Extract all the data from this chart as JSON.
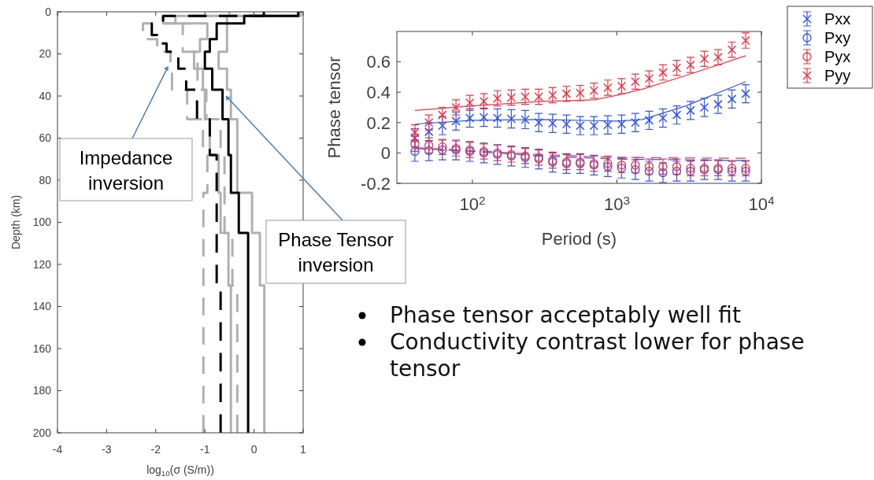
{
  "chart_data": [
    {
      "type": "line",
      "xlabel": "log$_{10}$(σ (S/m))",
      "ylabel": "Depth (km)",
      "xlim": [
        -4,
        1
      ],
      "ylim": [
        200,
        0
      ],
      "xticks": [
        -4,
        -3,
        -2,
        -1,
        0,
        1
      ],
      "yticks": [
        0,
        20,
        40,
        60,
        80,
        100,
        120,
        140,
        160,
        180,
        200
      ],
      "grid": false,
      "legend": false,
      "series": [
        {
          "color": "#b0b0b0",
          "line_style": "solid",
          "x": [
            0.95,
            0.95,
            -0.55,
            -0.55,
            -0.72,
            -0.72,
            -0.55,
            -0.55,
            -0.47,
            -0.47,
            -0.34,
            -0.34,
            -0.04,
            -0.04,
            0.12,
            0.12,
            0.21,
            0.21
          ],
          "values": [
            0,
            2,
            2,
            19,
            19,
            27,
            27,
            37,
            37,
            51,
            51,
            86,
            86,
            105,
            105,
            130,
            130,
            200
          ]
        },
        {
          "color": "#b0b0b0",
          "line_style": "solid",
          "x": [
            0.9,
            0.9,
            -1.85,
            -1.85,
            -0.95,
            -0.95,
            -1.1,
            -1.1,
            -1.22,
            -1.22,
            -1.04,
            -1.04,
            -1.0,
            -1.0,
            -0.9,
            -0.9,
            -0.72,
            -0.72,
            -0.68,
            -0.68,
            -0.52,
            -0.52,
            -0.47,
            -0.47
          ],
          "values": [
            0,
            2,
            2,
            5.5,
            5.5,
            13,
            13,
            19,
            19,
            27,
            27,
            37,
            37,
            51,
            51,
            68,
            68,
            86,
            86,
            105,
            105,
            130,
            130,
            200
          ]
        },
        {
          "color": "#b0b0b0",
          "line_style": "dashed",
          "x": [
            0.9,
            0.9,
            -1.3,
            -1.3,
            -1.45,
            -1.45,
            -1.15,
            -1.15,
            -0.97,
            -0.97,
            -0.68,
            -0.68,
            -0.6,
            -0.6,
            -0.44,
            -0.44,
            -0.34,
            -0.34
          ],
          "values": [
            0,
            2,
            2,
            5.5,
            5.5,
            19,
            19,
            37,
            37,
            51,
            51,
            68,
            68,
            105,
            105,
            130,
            130,
            200
          ]
        },
        {
          "color": "#b0b0b0",
          "line_style": "dashed",
          "x": [
            -0.5,
            -0.5,
            -1.6,
            -1.6,
            -2.26,
            -2.26,
            -1.97,
            -1.97,
            -1.7,
            -1.7,
            -1.67,
            -1.67,
            -1.36,
            -1.36,
            -1.04,
            -1.04,
            -0.95,
            -0.95,
            -1.03,
            -1.03
          ],
          "values": [
            0,
            2,
            2,
            5.5,
            5.5,
            13,
            13,
            19,
            19,
            27,
            27,
            37,
            37,
            51,
            51,
            68,
            68,
            86,
            86,
            200
          ]
        },
        {
          "color": "#000000",
          "line_style": "dashed",
          "x": [
            0.2,
            0.2,
            -1.85,
            -1.85,
            -2.08,
            -2.08,
            -1.97,
            -1.97,
            -1.78,
            -1.78,
            -1.54,
            -1.54,
            -1.38,
            -1.38,
            -1.16,
            -1.16,
            -0.9,
            -0.9,
            -0.76,
            -0.76,
            -0.68,
            -0.68
          ],
          "values": [
            0,
            2,
            2,
            5.5,
            5.5,
            11,
            11,
            15,
            15,
            19,
            19,
            27,
            27,
            37,
            37,
            51,
            51,
            68,
            68,
            130,
            130,
            200
          ]
        },
        {
          "color": "#000000",
          "line_style": "solid",
          "x": [
            0.9,
            0.9,
            -0.2,
            -0.2,
            -0.76,
            -0.76,
            -0.9,
            -0.9,
            -1.0,
            -1.0,
            -0.85,
            -0.85,
            -0.64,
            -0.64,
            -0.52,
            -0.52,
            -0.47,
            -0.47,
            -0.31,
            -0.31,
            -0.12,
            -0.12
          ],
          "values": [
            0,
            2,
            2,
            5.5,
            5.5,
            13,
            13,
            19,
            19,
            27,
            27,
            37,
            37,
            51,
            51,
            68,
            68,
            86,
            86,
            105,
            105,
            200
          ]
        }
      ],
      "annotations": [
        {
          "text": "Impedance inversion",
          "x": -1.75,
          "y": 26
        },
        {
          "text": "Phase Tensor inversion",
          "x": -0.57,
          "y": 40
        }
      ]
    },
    {
      "type": "scatter",
      "xlabel": "Period (s)",
      "ylabel": "Phase tensor",
      "log": "x",
      "xlim": [
        30,
        10000
      ],
      "ylim": [
        -0.2,
        0.8
      ],
      "xticks": [
        {
          "value": 100,
          "label": "10$^{2}$"
        },
        {
          "value": 1000,
          "label": "10$^{3}$"
        },
        {
          "value": 10000,
          "label": "10$^{4}$"
        }
      ],
      "yticks": [
        -0.2,
        0,
        0.2,
        0.4,
        0.6
      ],
      "grid": false,
      "legend": "right",
      "x": [
        40,
        50,
        62,
        77,
        96,
        120,
        149,
        186,
        232,
        288,
        359,
        448,
        557,
        694,
        865,
        1078,
        1342,
        1672,
        2083,
        2595,
        3233,
        4027,
        5017,
        6250,
        7786
      ],
      "series": [
        {
          "name": "Pxx",
          "color": "#3355ee",
          "marker": "cross",
          "values": [
            0.1,
            0.14,
            0.18,
            0.21,
            0.23,
            0.235,
            0.23,
            0.225,
            0.22,
            0.2,
            0.195,
            0.19,
            0.18,
            0.18,
            0.185,
            0.19,
            0.2,
            0.215,
            0.23,
            0.25,
            0.28,
            0.3,
            0.32,
            0.355,
            0.39
          ],
          "errors": [
            0.06,
            0.06,
            0.06,
            0.06,
            0.06,
            0.06,
            0.06,
            0.06,
            0.06,
            0.06,
            0.06,
            0.06,
            0.06,
            0.06,
            0.06,
            0.06,
            0.06,
            0.06,
            0.06,
            0.06,
            0.06,
            0.06,
            0.06,
            0.06,
            0.06
          ]
        },
        {
          "name": "Pxy",
          "color": "#3355ee",
          "marker": "circle",
          "values": [
            0.01,
            0.015,
            0.02,
            0.02,
            0.01,
            0.0,
            -0.01,
            -0.02,
            -0.03,
            -0.04,
            -0.06,
            -0.07,
            -0.07,
            -0.08,
            -0.09,
            -0.1,
            -0.11,
            -0.12,
            -0.13,
            -0.12,
            -0.12,
            -0.11,
            -0.11,
            -0.12,
            -0.12
          ],
          "errors": [
            0.065,
            0.065,
            0.065,
            0.065,
            0.065,
            0.065,
            0.065,
            0.065,
            0.065,
            0.065,
            0.065,
            0.065,
            0.065,
            0.065,
            0.065,
            0.065,
            0.065,
            0.065,
            0.065,
            0.065,
            0.065,
            0.065,
            0.065,
            0.065,
            0.065
          ]
        },
        {
          "name": "Pyx",
          "color": "#ee3344",
          "marker": "circle",
          "values": [
            0.06,
            0.05,
            0.04,
            0.03,
            0.02,
            0.01,
            0.0,
            -0.01,
            -0.02,
            -0.03,
            -0.05,
            -0.06,
            -0.06,
            -0.07,
            -0.07,
            -0.08,
            -0.08,
            -0.09,
            -0.09,
            -0.09,
            -0.1,
            -0.1,
            -0.1,
            -0.1,
            -0.1
          ],
          "errors": [
            0.05,
            0.05,
            0.05,
            0.05,
            0.05,
            0.05,
            0.05,
            0.05,
            0.05,
            0.05,
            0.05,
            0.05,
            0.05,
            0.05,
            0.05,
            0.05,
            0.05,
            0.05,
            0.05,
            0.05,
            0.05,
            0.05,
            0.05,
            0.05,
            0.05
          ]
        },
        {
          "name": "Pyy",
          "color": "#ee3344",
          "marker": "cross",
          "values": [
            0.135,
            0.2,
            0.25,
            0.3,
            0.33,
            0.34,
            0.36,
            0.365,
            0.37,
            0.37,
            0.38,
            0.39,
            0.395,
            0.41,
            0.43,
            0.44,
            0.47,
            0.49,
            0.53,
            0.56,
            0.58,
            0.62,
            0.63,
            0.68,
            0.74
          ],
          "errors": [
            0.05,
            0.05,
            0.05,
            0.05,
            0.05,
            0.05,
            0.05,
            0.05,
            0.05,
            0.05,
            0.05,
            0.05,
            0.05,
            0.05,
            0.05,
            0.05,
            0.05,
            0.05,
            0.05,
            0.05,
            0.05,
            0.05,
            0.05,
            0.05,
            0.05
          ]
        },
        {
          "type": "line",
          "color": "#3355ee",
          "line_style": "solid",
          "x": [
            40,
            100,
            300,
            1000,
            1500,
            3000,
            7800
          ],
          "values": [
            0.19,
            0.215,
            0.22,
            0.21,
            0.22,
            0.31,
            0.47
          ]
        },
        {
          "type": "line",
          "color": "#ee3344",
          "line_style": "solid",
          "x": [
            40,
            100,
            300,
            700,
            1000,
            1500,
            3000,
            7800
          ],
          "values": [
            0.28,
            0.31,
            0.34,
            0.35,
            0.38,
            0.42,
            0.51,
            0.64
          ]
        },
        {
          "type": "line",
          "color": "#3355ee",
          "line_style": "dashed",
          "x": [
            40,
            100,
            300,
            1000,
            7800
          ],
          "values": [
            0.03,
            0.01,
            -0.02,
            -0.04,
            -0.05
          ]
        },
        {
          "type": "line",
          "color": "#ee3344",
          "line_style": "dashed",
          "x": [
            40,
            100,
            300,
            1000,
            7800
          ],
          "values": [
            0.035,
            0.015,
            -0.01,
            -0.03,
            -0.035
          ]
        }
      ]
    },
    {
      "type": "other",
      "annotations": [
        "Phase tensor acceptably well fit",
        "Conductivity contrast lower for phase tensor"
      ]
    }
  ]
}
